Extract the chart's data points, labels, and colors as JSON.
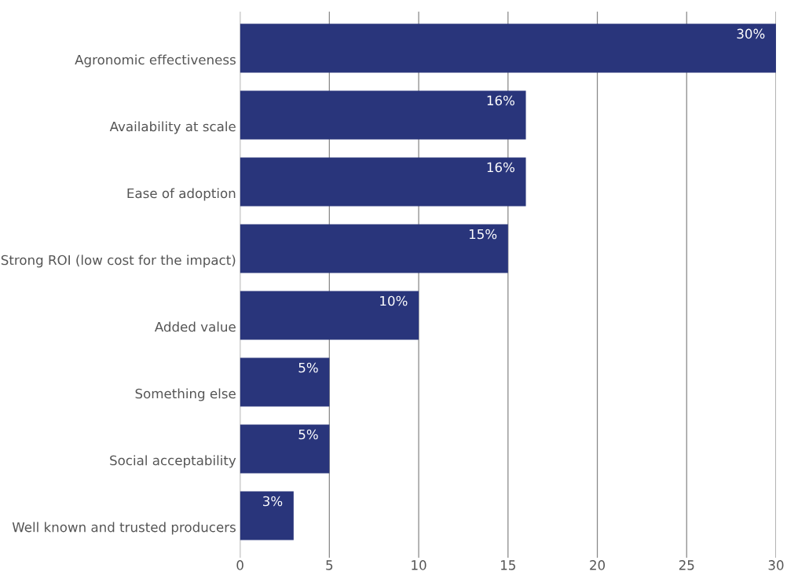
{
  "chart_data": {
    "type": "bar",
    "orientation": "horizontal",
    "categories": [
      "Agronomic effectiveness",
      "Availability at scale",
      "Ease of adoption",
      "Strong ROI (low cost for the impact)",
      "Added value",
      "Something else",
      "Social acceptability",
      "Well known and trusted producers"
    ],
    "values": [
      30,
      16,
      16,
      15,
      10,
      5,
      5,
      3
    ],
    "value_labels": [
      "30%",
      "16%",
      "16%",
      "15%",
      "10%",
      "5%",
      "5%",
      "3%"
    ],
    "color": "#29357b",
    "xlim": [
      0,
      30
    ],
    "xticks": [
      0,
      5,
      10,
      15,
      20,
      25,
      30
    ],
    "grid": "x"
  }
}
